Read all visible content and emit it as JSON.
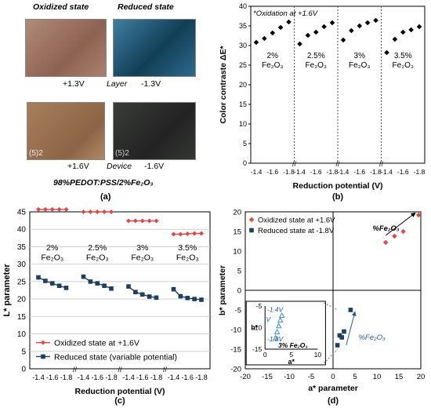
{
  "panel_a": {
    "label": "(a)",
    "oxidized_title": "Oxidized state",
    "reduced_title": "Reduced state",
    "layer_ox_v": "+1.3V",
    "layer_word": "Layer",
    "layer_red_v": "-1.3V",
    "device_ox_v": "+1.6V",
    "device_word": "Device",
    "device_red_v": "-1.6V",
    "sample_mark": "(5)2",
    "caption": "98%PEDOT:PSS/2%Fe₂O₃",
    "colors": {
      "layer_ox": "#9a6e5a",
      "layer_red": "#1f5a7a",
      "device_ox": "#9a7454",
      "device_red": "#2b2d2c"
    }
  },
  "chart_data": [
    {
      "id": "b",
      "type": "scatter",
      "panel_label": "(b)",
      "annotation": "*Oxidation at +1.6V",
      "xlabel": "Reduction potential (V)",
      "ylabel": "Color contraste ΔE*",
      "ylim": [
        0,
        40
      ],
      "yticks": [
        0,
        5,
        10,
        15,
        20,
        25,
        30,
        35,
        40
      ],
      "x_tick_labels": [
        "-1.4",
        "-1.6",
        "-1.8"
      ],
      "marker_color": "#000000",
      "groups": [
        {
          "label_pct": "2%",
          "x": [
            -1.4,
            -1.5,
            -1.6,
            -1.7,
            -1.8
          ],
          "y": [
            30.8,
            31.8,
            33.2,
            34.6,
            36.0
          ]
        },
        {
          "label_pct": "2.5%",
          "x": [
            -1.4,
            -1.5,
            -1.6,
            -1.7,
            -1.8
          ],
          "y": [
            30.4,
            32.6,
            33.4,
            34.8,
            35.8
          ]
        },
        {
          "label_pct": "3%",
          "x": [
            -1.4,
            -1.5,
            -1.6,
            -1.7,
            -1.8
          ],
          "y": [
            31.4,
            33.8,
            35.0,
            35.8,
            36.4
          ]
        },
        {
          "label_pct": "3.5%",
          "x": [
            -1.4,
            -1.5,
            -1.6,
            -1.7,
            -1.8
          ],
          "y": [
            28.2,
            31.6,
            33.4,
            34.0,
            34.8
          ]
        }
      ],
      "group_label_unit": "Fe₂O₃"
    },
    {
      "id": "c",
      "type": "line",
      "panel_label": "(c)",
      "xlabel": "Reduction potential (V)",
      "ylabel": "L* parameter",
      "ylim": [
        0,
        45
      ],
      "yticks": [
        0,
        5,
        10,
        15,
        20,
        25,
        30,
        35,
        40,
        45
      ],
      "x_tick_labels": [
        "-1.4",
        "-1.6",
        "-1.8"
      ],
      "legend_position": "bottom-left",
      "group_label_unit": "Fe₂O₃",
      "series": [
        {
          "name": "Oxidized state at +1.6V",
          "color": "#e04848",
          "marker": "diamond",
          "groups": [
            {
              "x": [
                -1.4,
                -1.5,
                -1.6,
                -1.7,
                -1.8
              ],
              "y": [
                45.7,
                45.7,
                45.7,
                45.7,
                45.7
              ]
            },
            {
              "x": [
                -1.4,
                -1.5,
                -1.6,
                -1.7,
                -1.8
              ],
              "y": [
                45.0,
                45.0,
                45.0,
                45.0,
                45.0
              ]
            },
            {
              "x": [
                -1.4,
                -1.5,
                -1.6,
                -1.7,
                -1.8
              ],
              "y": [
                42.4,
                42.4,
                42.4,
                42.4,
                42.4
              ]
            },
            {
              "x": [
                -1.4,
                -1.5,
                -1.6,
                -1.7,
                -1.8
              ],
              "y": [
                38.6,
                38.6,
                38.7,
                38.8,
                38.8
              ]
            }
          ]
        },
        {
          "name": "Reduced state (variable potential)",
          "color": "#1f3f5e",
          "marker": "square",
          "groups": [
            {
              "x": [
                -1.4,
                -1.5,
                -1.6,
                -1.7,
                -1.8
              ],
              "y": [
                26.2,
                25.2,
                24.5,
                23.8,
                23.2
              ]
            },
            {
              "x": [
                -1.4,
                -1.5,
                -1.6,
                -1.7,
                -1.8
              ],
              "y": [
                26.4,
                25.0,
                24.5,
                23.8,
                23.0
              ]
            },
            {
              "x": [
                -1.4,
                -1.5,
                -1.6,
                -1.7,
                -1.8
              ],
              "y": [
                23.6,
                22.0,
                21.3,
                20.7,
                20.4
              ]
            },
            {
              "x": [
                -1.4,
                -1.5,
                -1.6,
                -1.7,
                -1.8
              ],
              "y": [
                22.8,
                20.8,
                20.3,
                20.0,
                19.8
              ]
            }
          ]
        }
      ],
      "group_labels_pct": [
        "2%",
        "2.5%",
        "3%",
        "3.5%"
      ]
    },
    {
      "id": "d",
      "type": "scatter",
      "panel_label": "(d)",
      "xlabel": "a* parameter",
      "ylabel": "b* parameter",
      "xlim": [
        -20,
        20
      ],
      "ylim": [
        -20,
        20
      ],
      "xticks": [
        -20,
        -15,
        -10,
        -5,
        0,
        5,
        10,
        15,
        20
      ],
      "yticks": [
        -20,
        -15,
        -10,
        -5,
        0,
        5,
        10,
        15,
        20
      ],
      "legend_position": "top-left",
      "series": [
        {
          "name": "Oxidized state at +1.6V",
          "color": "#e04848",
          "marker": "diamond",
          "x": [
            12,
            14,
            16,
            19.5
          ],
          "y": [
            12.2,
            13.8,
            15,
            19.2
          ]
        },
        {
          "name": "Reduced state at -1.8V",
          "color": "#1f3f5e",
          "marker": "square",
          "x": [
            1,
            2,
            1.5,
            2.5,
            4
          ],
          "y": [
            -14,
            -12,
            -11.5,
            -10.5,
            -5
          ]
        }
      ],
      "arrow_ox_label": "%Fe₂O₃",
      "arrow_red_label": "%Fe₂O₃",
      "inset": {
        "xlim": [
          0,
          10
        ],
        "ylim": [
          -15,
          -5
        ],
        "xticks": [
          0,
          5,
          10
        ],
        "yticks": [
          -15,
          -10,
          -5
        ],
        "xlabel": "a*",
        "ylabel": "b*",
        "label_top": "-1.4V",
        "label_bottom": "-1.8V",
        "label_v": "V",
        "note": "3% Fe₂O₃",
        "x": [
          3.2,
          2.9,
          2.6,
          2.3,
          2.0
        ],
        "y": [
          -7.2,
          -8.3,
          -9.6,
          -11.0,
          -12.4
        ]
      }
    }
  ]
}
